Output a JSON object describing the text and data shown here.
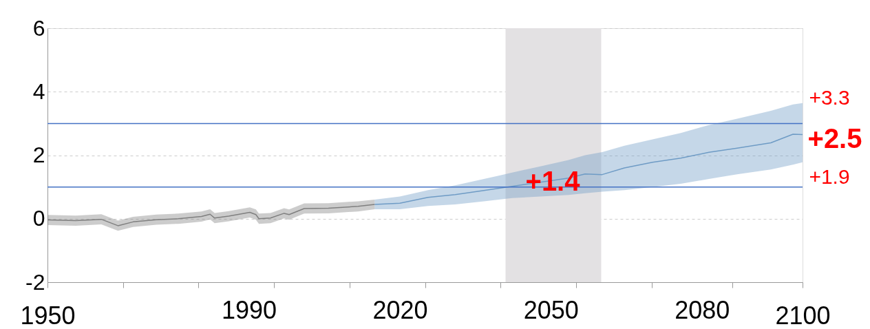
{
  "chart_data": {
    "type": "line",
    "series": [
      {
        "color": "#7f7f7f",
        "x": [
          1950,
          1955.6,
          1960.7,
          1964,
          1967,
          1971.6,
          1976,
          1980.6,
          1982.3,
          1983.2,
          1986,
          1990.2,
          1991.4,
          1992,
          1994.3,
          1997,
          1998,
          2001,
          2005.8,
          2011.7,
          2015
        ],
        "values": [
          -0.04,
          -0.06,
          -0.02,
          -0.22,
          -0.1,
          -0.03,
          0,
          0.07,
          0.14,
          0.02,
          0.08,
          0.2,
          0.13,
          0,
          0.02,
          0.17,
          0.13,
          0.32,
          0.33,
          0.39,
          0.45
        ],
        "lower": [
          -0.2,
          -0.22,
          -0.18,
          -0.38,
          -0.26,
          -0.19,
          -0.16,
          -0.09,
          -0.02,
          -0.14,
          -0.08,
          0.04,
          -0.03,
          -0.16,
          -0.14,
          0.01,
          -0.03,
          0.16,
          0.17,
          0.23,
          0.3
        ],
        "upper": [
          0.12,
          0.1,
          0.14,
          -0.06,
          0.06,
          0.13,
          0.16,
          0.23,
          0.3,
          0.18,
          0.24,
          0.36,
          0.29,
          0.16,
          0.18,
          0.33,
          0.29,
          0.48,
          0.49,
          0.55,
          0.6
        ]
      },
      {
        "color": "#6e9bc5",
        "x": [
          2015,
          2020,
          2025.6,
          2031,
          2036.7,
          2042.3,
          2047.9,
          2053.5,
          2056.8,
          2060.2,
          2064.6,
          2070.2,
          2075.8,
          2081.4,
          2087,
          2093.7,
          2098.1,
          2100
        ],
        "values": [
          0.45,
          0.49,
          0.67,
          0.76,
          0.89,
          1.02,
          1.15,
          1.28,
          1.41,
          1.39,
          1.6,
          1.78,
          1.91,
          2.09,
          2.22,
          2.39,
          2.66,
          2.65
        ],
        "lower": [
          0.3,
          0.3,
          0.4,
          0.45,
          0.55,
          0.65,
          0.7,
          0.75,
          0.8,
          0.85,
          0.9,
          1.0,
          1.1,
          1.25,
          1.4,
          1.55,
          1.7,
          1.78
        ],
        "upper": [
          0.6,
          0.7,
          0.9,
          1.05,
          1.25,
          1.45,
          1.65,
          1.85,
          2.0,
          2.1,
          2.3,
          2.5,
          2.7,
          2.95,
          3.15,
          3.4,
          3.6,
          3.64
        ]
      }
    ],
    "xlim": [
      1950,
      2100
    ],
    "xticks": [
      1950,
      {
        "value": 1965,
        "label": null
      },
      {
        "value": 1980,
        "label": null
      },
      1990,
      {
        "value": 1995,
        "label": null
      },
      {
        "value": 2010,
        "label": null
      },
      2020,
      {
        "value": 2025,
        "label": null
      },
      {
        "value": 2040,
        "label": null
      },
      2050,
      {
        "value": 2055,
        "label": null
      },
      {
        "value": 2070,
        "label": null
      },
      2080,
      {
        "value": 2086,
        "label": null
      },
      2100
    ],
    "ylim": [
      -2,
      6
    ],
    "yticks": [
      -2,
      0,
      2,
      4,
      6
    ],
    "grid": "y",
    "ref_lines": [
      {
        "axis": "y",
        "value": 3,
        "color": "#4472c4"
      },
      {
        "axis": "y",
        "value": 1,
        "color": "#4472c4"
      }
    ],
    "bands": [
      {
        "axis": "x",
        "from": 2041,
        "to": 2060,
        "color": "#e3e1e3"
      }
    ],
    "annotations": [
      "+3.3",
      "+2.5",
      "+1.9",
      "+1.4"
    ]
  }
}
